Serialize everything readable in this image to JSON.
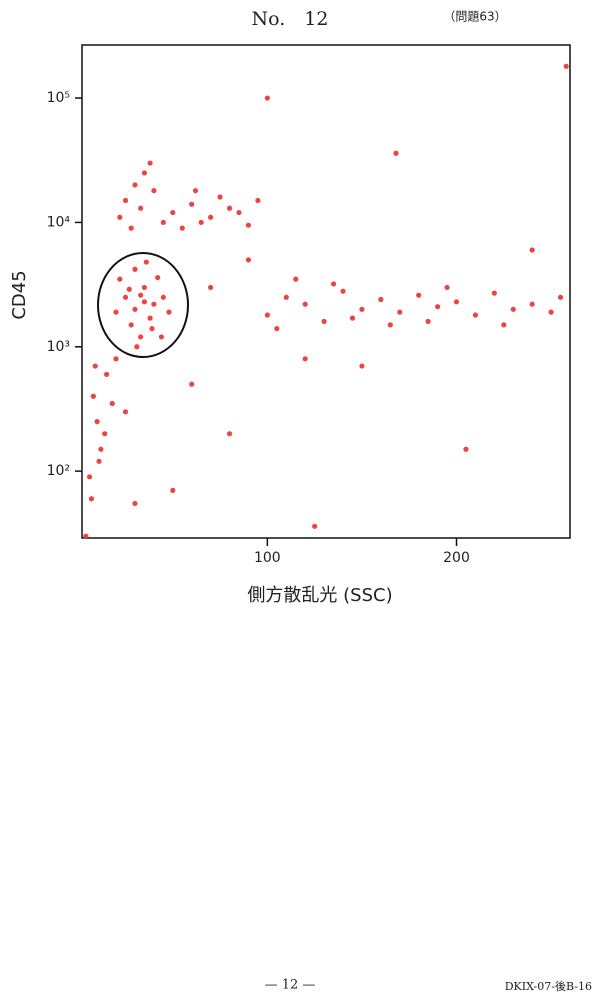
{
  "header": {
    "number": "No.　12",
    "question": "（問題63）"
  },
  "chart_data": {
    "type": "scatter",
    "xlabel": "側方散乱光 (SSC)",
    "ylabel": "CD45",
    "color": "#e8312f",
    "ylog": true,
    "xlim": [
      2,
      260
    ],
    "ylim": [
      29,
      267000
    ],
    "xticks": [
      100,
      200
    ],
    "yticks": [
      {
        "value": 100,
        "label": "10²"
      },
      {
        "value": 1000,
        "label": "10³"
      },
      {
        "value": 10000,
        "label": "10⁴"
      },
      {
        "value": 100000,
        "label": "10⁵"
      }
    ],
    "x": [
      25,
      30,
      35,
      40,
      28,
      33,
      38,
      45,
      22,
      30,
      36,
      42,
      27,
      33,
      39,
      48,
      20,
      31,
      44,
      35,
      25,
      30,
      35,
      22,
      28,
      40,
      33,
      38,
      50,
      60,
      70,
      80,
      55,
      65,
      75,
      85,
      90,
      45,
      95,
      62,
      100,
      110,
      120,
      130,
      140,
      150,
      160,
      170,
      180,
      190,
      200,
      210,
      220,
      230,
      240,
      250,
      105,
      135,
      165,
      195,
      225,
      255,
      145,
      185,
      115,
      8,
      10,
      12,
      6,
      15,
      18,
      9,
      14,
      11,
      20,
      7,
      25,
      100,
      168,
      205,
      125,
      50,
      150,
      90,
      70,
      120,
      60,
      80,
      240,
      30,
      4,
      258
    ],
    "values": [
      2500,
      2000,
      3000,
      2200,
      1500,
      1200,
      1700,
      2500,
      3500,
      4200,
      4800,
      3600,
      2900,
      2600,
      1400,
      1900,
      1900,
      1000,
      1200,
      2300,
      15000,
      20000,
      25000,
      11000,
      9000,
      18000,
      13000,
      30000,
      12000,
      14000,
      11000,
      13000,
      9000,
      10000,
      16000,
      12000,
      9500,
      10000,
      15000,
      18000,
      1800,
      2500,
      2200,
      1600,
      2800,
      2000,
      2400,
      1900,
      2600,
      2100,
      2300,
      1800,
      2700,
      2000,
      2200,
      1900,
      1400,
      3200,
      1500,
      3000,
      1500,
      2500,
      1700,
      1600,
      3500,
      400,
      250,
      150,
      90,
      600,
      350,
      700,
      200,
      120,
      800,
      60,
      300,
      100000,
      36000,
      150,
      36,
      70,
      700,
      5000,
      3000,
      800,
      500,
      200,
      6000,
      55,
      30,
      180000
    ]
  },
  "footer": {
    "page": "— 12 —",
    "code": "DKIX-07-後B-16"
  }
}
